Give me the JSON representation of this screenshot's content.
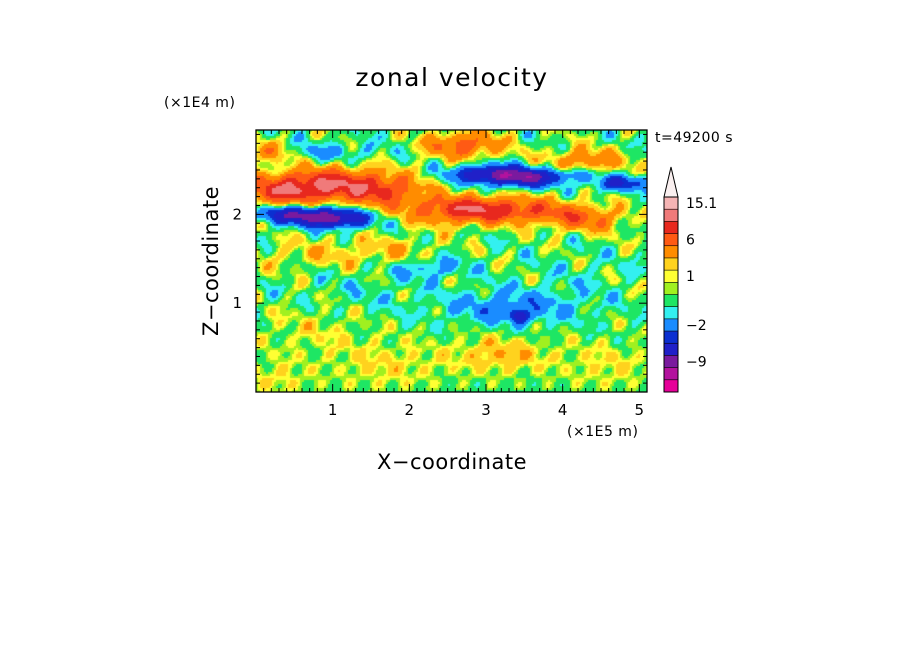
{
  "chart_data": {
    "type": "heatmap",
    "title": "zonal velocity",
    "xlabel": "X−coordinate",
    "ylabel": "Z−coordinate",
    "x_unit": "(×1E5 m)",
    "y_unit": "(×1E4 m)",
    "time_label": "t=49200 s",
    "xlim": [
      0,
      5.1
    ],
    "ylim": [
      0,
      2.95
    ],
    "x_ticks": [
      1,
      2,
      3,
      4,
      5
    ],
    "y_ticks": [
      1,
      2
    ],
    "x_tick_labels": [
      "1",
      "2",
      "3",
      "4",
      "5"
    ],
    "y_tick_labels": [
      "1",
      "2"
    ],
    "grid": false,
    "colorbar": {
      "extend": "max",
      "levels": [
        -16,
        -12,
        -9,
        -6,
        -4,
        -2,
        -1,
        0,
        0.5,
        1,
        2,
        4,
        6,
        8,
        11,
        15.1
      ],
      "colors": [
        "#e60099",
        "#b3129e",
        "#7a1a9e",
        "#2020c8",
        "#0b2fd0",
        "#1a8cff",
        "#33f0f0",
        "#1ee664",
        "#a0f020",
        "#ffff33",
        "#ffd21e",
        "#ff8c00",
        "#ff5a14",
        "#e8281e",
        "#f07a7a",
        "#f5b4b4",
        "#faf0f0"
      ],
      "labels": [
        {
          "value": 15.1,
          "text": "15.1"
        },
        {
          "value": 6,
          "text": "6"
        },
        {
          "value": 1,
          "text": "1"
        },
        {
          "value": -2,
          "text": "−2"
        },
        {
          "value": -9,
          "text": "−9"
        }
      ]
    },
    "field": {
      "background": -0.3,
      "features": [
        {
          "x": 0.3,
          "z": 2.25,
          "sx": 0.5,
          "sz": 0.12,
          "v": 5.5
        },
        {
          "x": 1.0,
          "z": 2.35,
          "sx": 0.55,
          "sz": 0.13,
          "v": 6.5
        },
        {
          "x": 1.7,
          "z": 2.25,
          "sx": 0.35,
          "sz": 0.12,
          "v": 4.5
        },
        {
          "x": 2.6,
          "z": 2.05,
          "sx": 0.45,
          "sz": 0.11,
          "v": 6.0
        },
        {
          "x": 3.4,
          "z": 2.05,
          "sx": 0.5,
          "sz": 0.1,
          "v": 5.5
        },
        {
          "x": 4.3,
          "z": 1.95,
          "sx": 0.35,
          "sz": 0.1,
          "v": 4.5
        },
        {
          "x": 2.7,
          "z": 2.78,
          "sx": 0.35,
          "sz": 0.1,
          "v": 5.5
        },
        {
          "x": 4.3,
          "z": 2.6,
          "sx": 0.35,
          "sz": 0.1,
          "v": 4.0
        },
        {
          "x": 0.15,
          "z": 2.7,
          "sx": 0.25,
          "sz": 0.08,
          "v": 3.5
        },
        {
          "x": 0.5,
          "z": 2.0,
          "sx": 0.35,
          "sz": 0.07,
          "v": -8.0
        },
        {
          "x": 1.05,
          "z": 1.95,
          "sx": 0.3,
          "sz": 0.07,
          "v": -9.0
        },
        {
          "x": 3.1,
          "z": 2.45,
          "sx": 0.35,
          "sz": 0.07,
          "v": -9.5
        },
        {
          "x": 3.55,
          "z": 2.4,
          "sx": 0.25,
          "sz": 0.07,
          "v": -7.0
        },
        {
          "x": 4.75,
          "z": 2.35,
          "sx": 0.25,
          "sz": 0.06,
          "v": -5.5
        },
        {
          "x": 4.1,
          "z": 2.45,
          "sx": 0.25,
          "sz": 0.06,
          "v": -3.5
        },
        {
          "x": 0.9,
          "z": 2.7,
          "sx": 0.5,
          "sz": 0.08,
          "v": -2.0
        },
        {
          "x": 2.3,
          "z": 1.4,
          "sx": 0.3,
          "sz": 0.08,
          "v": -2.5
        },
        {
          "x": 3.3,
          "z": 0.95,
          "sx": 0.55,
          "sz": 0.13,
          "v": -3.0
        },
        {
          "x": 3.45,
          "z": 0.85,
          "sx": 0.08,
          "sz": 0.05,
          "v": -6.0
        },
        {
          "x": 1.7,
          "z": 0.3,
          "sx": 0.5,
          "sz": 0.18,
          "v": 1.3
        },
        {
          "x": 3.2,
          "z": 0.42,
          "sx": 0.45,
          "sz": 0.14,
          "v": 2.2
        },
        {
          "x": 0.25,
          "z": 0.15,
          "sx": 0.3,
          "sz": 0.15,
          "v": 1.2
        },
        {
          "x": 4.6,
          "z": 0.3,
          "sx": 0.4,
          "sz": 0.18,
          "v": 1.2
        },
        {
          "x": 0.8,
          "z": 0.7,
          "sx": 0.5,
          "sz": 0.2,
          "v": 1.0
        },
        {
          "x": 4.2,
          "z": 1.2,
          "sx": 0.5,
          "sz": 0.25,
          "v": -0.6
        },
        {
          "x": 1.5,
          "z": 1.1,
          "sx": 0.6,
          "sz": 0.2,
          "v": -0.7
        },
        {
          "x": 0.8,
          "z": 1.55,
          "sx": 0.6,
          "sz": 0.12,
          "v": 1.5
        },
        {
          "x": 1.8,
          "z": 1.6,
          "sx": 0.4,
          "sz": 0.1,
          "v": 1.6
        }
      ]
    }
  }
}
